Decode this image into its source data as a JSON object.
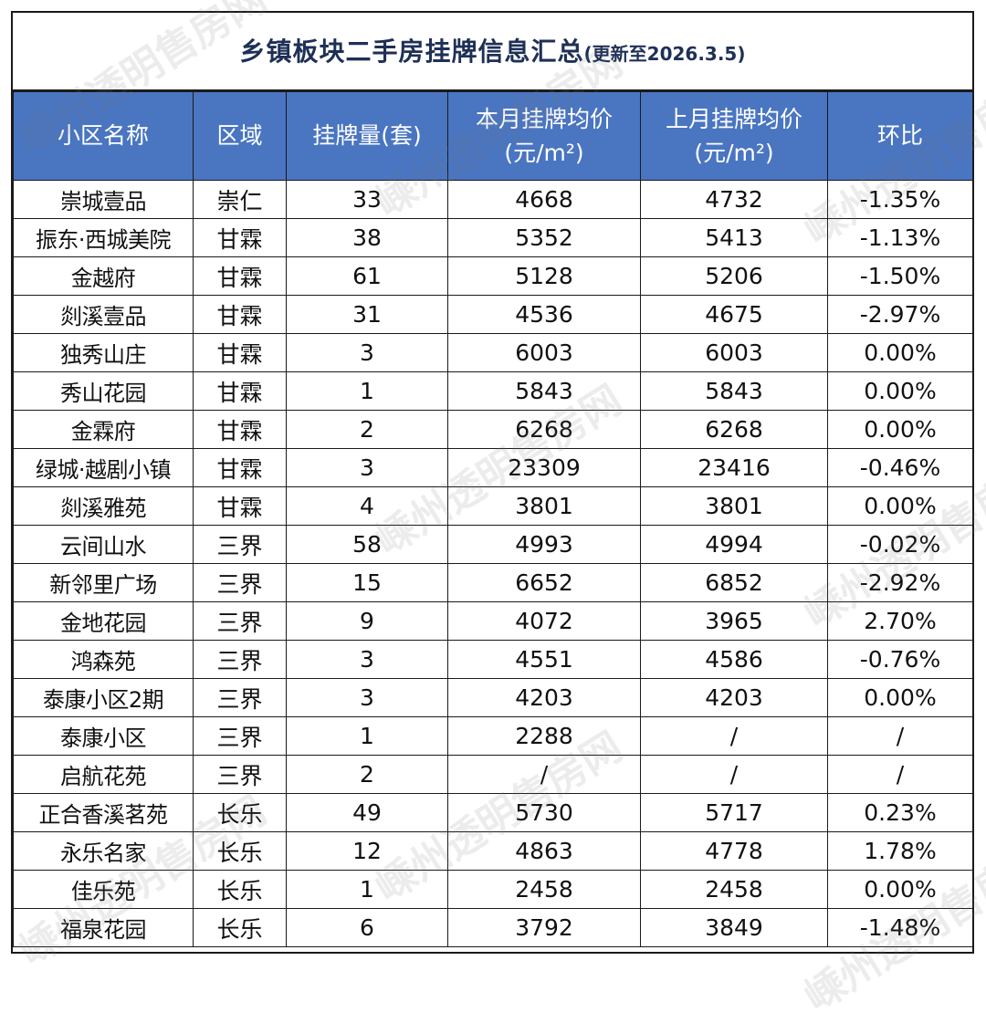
{
  "title": {
    "main": "乡镇板块二手房挂牌信息汇总",
    "sub": "(更新至2026.3.5)"
  },
  "columns": [
    {
      "line1": "小区名称",
      "line2": ""
    },
    {
      "line1": "区域",
      "line2": ""
    },
    {
      "line1": "挂牌量(套)",
      "line2": ""
    },
    {
      "line1": "本月挂牌均价",
      "line2": "(元/m²)"
    },
    {
      "line1": "上月挂牌均价",
      "line2": "(元/m²)"
    },
    {
      "line1": "环比",
      "line2": ""
    }
  ],
  "rows": [
    [
      "崇城壹品",
      "崇仁",
      "33",
      "4668",
      "4732",
      "-1.35%"
    ],
    [
      "振东·西城美院",
      "甘霖",
      "38",
      "5352",
      "5413",
      "-1.13%"
    ],
    [
      "金越府",
      "甘霖",
      "61",
      "5128",
      "5206",
      "-1.50%"
    ],
    [
      "剡溪壹品",
      "甘霖",
      "31",
      "4536",
      "4675",
      "-2.97%"
    ],
    [
      "独秀山庄",
      "甘霖",
      "3",
      "6003",
      "6003",
      "0.00%"
    ],
    [
      "秀山花园",
      "甘霖",
      "1",
      "5843",
      "5843",
      "0.00%"
    ],
    [
      "金霖府",
      "甘霖",
      "2",
      "6268",
      "6268",
      "0.00%"
    ],
    [
      "绿城·越剧小镇",
      "甘霖",
      "3",
      "23309",
      "23416",
      "-0.46%"
    ],
    [
      "剡溪雅苑",
      "甘霖",
      "4",
      "3801",
      "3801",
      "0.00%"
    ],
    [
      "云间山水",
      "三界",
      "58",
      "4993",
      "4994",
      "-0.02%"
    ],
    [
      "新邻里广场",
      "三界",
      "15",
      "6652",
      "6852",
      "-2.92%"
    ],
    [
      "金地花园",
      "三界",
      "9",
      "4072",
      "3965",
      "2.70%"
    ],
    [
      "鸿森苑",
      "三界",
      "3",
      "4551",
      "4586",
      "-0.76%"
    ],
    [
      "泰康小区2期",
      "三界",
      "3",
      "4203",
      "4203",
      "0.00%"
    ],
    [
      "泰康小区",
      "三界",
      "1",
      "2288",
      "/",
      "/"
    ],
    [
      "启航花苑",
      "三界",
      "2",
      "/",
      "/",
      "/"
    ],
    [
      "正合香溪茗苑",
      "长乐",
      "49",
      "5730",
      "5717",
      "0.23%"
    ],
    [
      "永乐名家",
      "长乐",
      "12",
      "4863",
      "4778",
      "1.78%"
    ],
    [
      "佳乐苑",
      "长乐",
      "1",
      "2458",
      "2458",
      "0.00%"
    ],
    [
      "福泉花园",
      "长乐",
      "6",
      "3792",
      "3849",
      "-1.48%"
    ]
  ],
  "watermark": "嵊州透明售房网"
}
